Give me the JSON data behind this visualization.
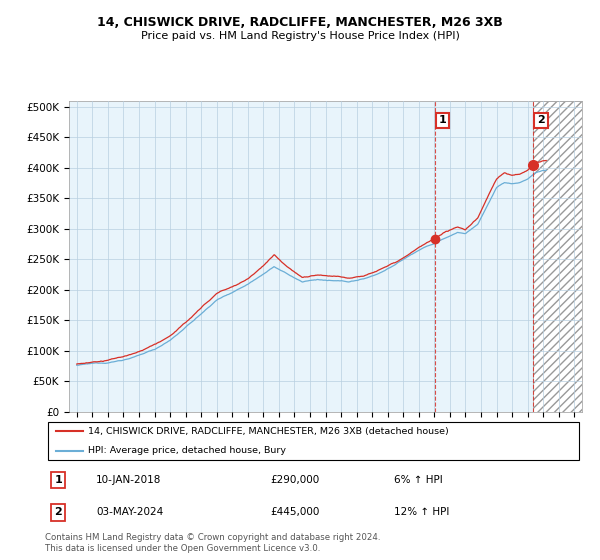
{
  "title": "14, CHISWICK DRIVE, RADCLIFFE, MANCHESTER, M26 3XB",
  "subtitle": "Price paid vs. HM Land Registry's House Price Index (HPI)",
  "yticks": [
    0,
    50000,
    100000,
    150000,
    200000,
    250000,
    300000,
    350000,
    400000,
    450000,
    500000
  ],
  "ytick_labels": [
    "£0",
    "£50K",
    "£100K",
    "£150K",
    "£200K",
    "£250K",
    "£300K",
    "£350K",
    "£400K",
    "£450K",
    "£500K"
  ],
  "xmin_year": 1994.5,
  "xmax_year": 2027.5,
  "xtick_years": [
    1995,
    1996,
    1997,
    1998,
    1999,
    2000,
    2001,
    2002,
    2003,
    2004,
    2005,
    2006,
    2007,
    2008,
    2009,
    2010,
    2011,
    2012,
    2013,
    2014,
    2015,
    2016,
    2017,
    2018,
    2019,
    2020,
    2021,
    2022,
    2023,
    2024,
    2025,
    2026,
    2027
  ],
  "hpi_line_color": "#6baed6",
  "price_color": "#d73027",
  "plot_bg_color": "#e8f4fb",
  "hatch_bg_color": "#d0e8f8",
  "sale1_date": 2018.04,
  "sale1_price": 290000,
  "sale2_date": 2024.36,
  "sale2_price": 445000,
  "vline1_color": "#d73027",
  "vline2_color": "#d73027",
  "legend1_text": "14, CHISWICK DRIVE, RADCLIFFE, MANCHESTER, M26 3XB (detached house)",
  "legend2_text": "HPI: Average price, detached house, Bury",
  "footer": "Contains HM Land Registry data © Crown copyright and database right 2024.\nThis data is licensed under the Open Government Licence v3.0.",
  "background_color": "#ffffff",
  "grid_color": "#b8cfe0",
  "ymax": 510000
}
